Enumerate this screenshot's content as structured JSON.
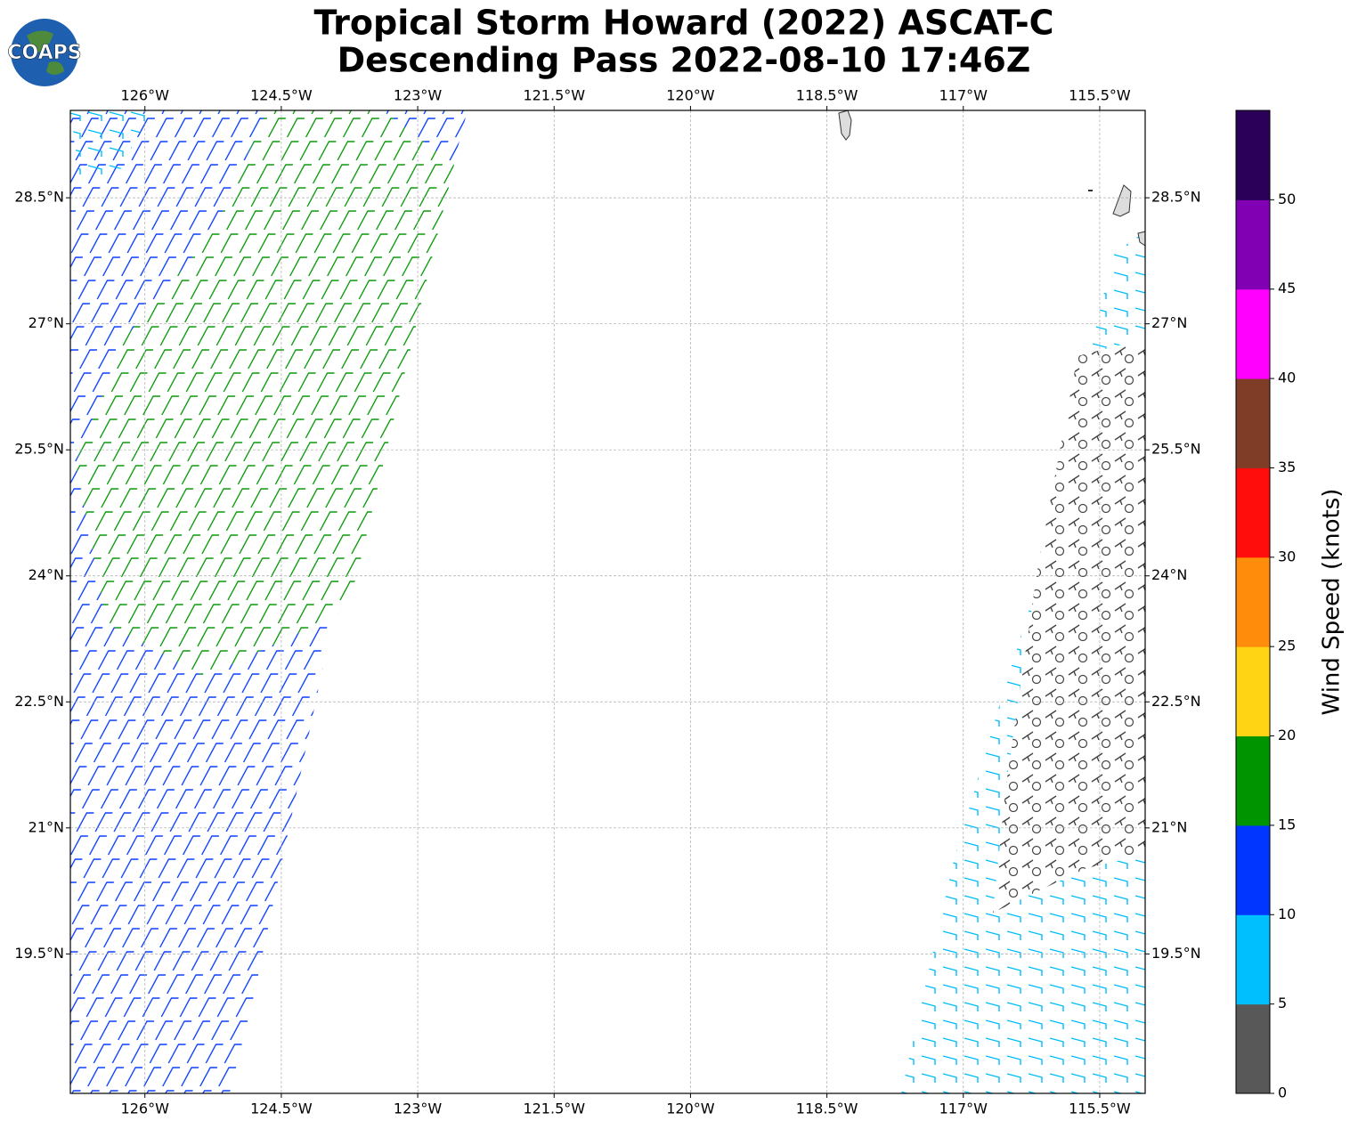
{
  "logo": "COAPS",
  "chart_data": {
    "type": "map",
    "title": "Tropical Storm Howard (2022) ASCAT-C",
    "subtitle": "Descending Pass 2022-08-10 17:46Z",
    "xlim": [
      -126.82,
      -115.0
    ],
    "ylim": [
      17.84,
      29.54
    ],
    "xticks": [
      {
        "value": -126,
        "label": "126°W"
      },
      {
        "value": -124.5,
        "label": "124.5°W"
      },
      {
        "value": -123,
        "label": "123°W"
      },
      {
        "value": -121.5,
        "label": "121.5°W"
      },
      {
        "value": -120,
        "label": "120°W"
      },
      {
        "value": -118.5,
        "label": "118.5°W"
      },
      {
        "value": -117,
        "label": "117°W"
      },
      {
        "value": -115.5,
        "label": "115.5°W"
      }
    ],
    "yticks": [
      {
        "value": 19.5,
        "label": "19.5°N"
      },
      {
        "value": 21,
        "label": "21°N"
      },
      {
        "value": 22.5,
        "label": "22.5°N"
      },
      {
        "value": 24,
        "label": "24°N"
      },
      {
        "value": 25.5,
        "label": "25.5°N"
      },
      {
        "value": 27,
        "label": "27°N"
      },
      {
        "value": 28.5,
        "label": "28.5°N"
      }
    ],
    "grid": true,
    "colorbar": {
      "label": "Wind Speed (knots)",
      "clim": [
        0,
        55
      ],
      "ticks": [
        0,
        5,
        10,
        15,
        20,
        25,
        30,
        35,
        40,
        45,
        50
      ],
      "colors": [
        "#585858",
        "#00bfff",
        "#0036ff",
        "#009400",
        "#ffd415",
        "#ff8c0a",
        "#ff0d0d",
        "#7f3d28",
        "#ff00ff",
        "#8200b4",
        "#2b0058"
      ]
    }
  }
}
